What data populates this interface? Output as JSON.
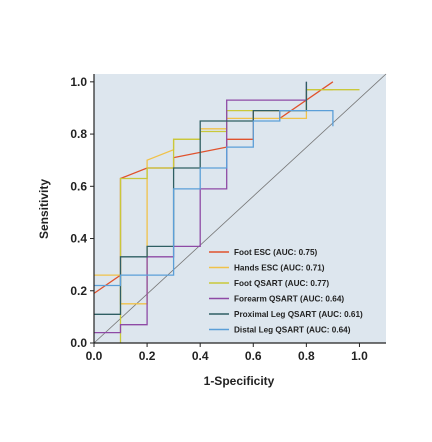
{
  "chart_data": {
    "type": "line",
    "subtype": "roc-step",
    "title": "",
    "xlabel": "1-Specificity",
    "ylabel": "Sensitivity",
    "xlim": [
      0.0,
      1.1
    ],
    "ylim": [
      0.0,
      1.03
    ],
    "xticks": [
      0.0,
      0.2,
      0.4,
      0.6,
      0.8,
      1.0
    ],
    "yticks": [
      0.0,
      0.2,
      0.4,
      0.6,
      0.8,
      1.0
    ],
    "xtick_labels": [
      "0.0",
      "0.2",
      "0.4",
      "0.6",
      "0.8",
      "1.0"
    ],
    "ytick_labels": [
      "0.0",
      "0.2",
      "0.4",
      "0.6",
      "0.8",
      "1.0"
    ],
    "grid": false,
    "background_color": "#dde6ee",
    "legend_position": "lower-right",
    "reference_line": {
      "x": [
        0.0,
        1.1
      ],
      "y": [
        0.0,
        1.03
      ],
      "color": "#777777"
    },
    "series": [
      {
        "name": "Foot ESC (AUC: 0.75)",
        "color": "#e0522d",
        "x": [
          0.0,
          0.1,
          0.1,
          0.2,
          0.2,
          0.3,
          0.3,
          0.5,
          0.5,
          0.6,
          0.6,
          0.7,
          0.7,
          0.9,
          0.9
        ],
        "y": [
          0.19,
          0.26,
          0.63,
          0.67,
          0.67,
          0.67,
          0.71,
          0.75,
          0.78,
          0.78,
          0.89,
          0.89,
          0.86,
          1.0,
          1.0
        ]
      },
      {
        "name": "Hands ESC (AUC: 0.71)",
        "color": "#f0c24a",
        "x": [
          0.0,
          0.1,
          0.1,
          0.2,
          0.2,
          0.3,
          0.3,
          0.4,
          0.4,
          0.5,
          0.5,
          0.8,
          0.8,
          0.9
        ],
        "y": [
          0.26,
          0.26,
          0.15,
          0.15,
          0.7,
          0.74,
          0.78,
          0.78,
          0.82,
          0.82,
          0.86,
          0.86,
          0.97,
          0.97
        ]
      },
      {
        "name": "Foot QSART (AUC: 0.77)",
        "color": "#c9c83a",
        "x": [
          0.1,
          0.1,
          0.2,
          0.2,
          0.3,
          0.3,
          0.4,
          0.4,
          0.5,
          0.5,
          0.8,
          0.8,
          0.9,
          1.0
        ],
        "y": [
          0.0,
          0.63,
          0.63,
          0.67,
          0.67,
          0.78,
          0.78,
          0.81,
          0.81,
          0.89,
          0.89,
          0.97,
          0.97,
          0.97
        ]
      },
      {
        "name": "Forearm QSART (AUC: 0.64)",
        "color": "#8e4aa5",
        "x": [
          0.0,
          0.1,
          0.1,
          0.2,
          0.2,
          0.3,
          0.3,
          0.4,
          0.4,
          0.5,
          0.5,
          0.8,
          0.8
        ],
        "y": [
          0.04,
          0.04,
          0.07,
          0.07,
          0.33,
          0.33,
          0.37,
          0.37,
          0.59,
          0.59,
          0.93,
          0.93,
          1.0
        ]
      },
      {
        "name": "Proximal Leg QSART (AUC: 0.61)",
        "color": "#2f5f63",
        "x": [
          0.0,
          0.1,
          0.1,
          0.2,
          0.2,
          0.3,
          0.3,
          0.4,
          0.4,
          0.6,
          0.6,
          0.8,
          0.8
        ],
        "y": [
          0.11,
          0.11,
          0.33,
          0.33,
          0.37,
          0.37,
          0.67,
          0.67,
          0.85,
          0.85,
          0.89,
          0.89,
          1.0
        ]
      },
      {
        "name": "Distal Leg QSART (AUC: 0.64)",
        "color": "#5b9fd8",
        "x": [
          0.0,
          0.1,
          0.1,
          0.3,
          0.3,
          0.4,
          0.4,
          0.5,
          0.5,
          0.6,
          0.6,
          0.7,
          0.7,
          0.9,
          0.9
        ],
        "y": [
          0.22,
          0.22,
          0.26,
          0.26,
          0.59,
          0.59,
          0.67,
          0.67,
          0.75,
          0.75,
          0.85,
          0.85,
          0.89,
          0.89,
          0.83
        ]
      }
    ]
  }
}
